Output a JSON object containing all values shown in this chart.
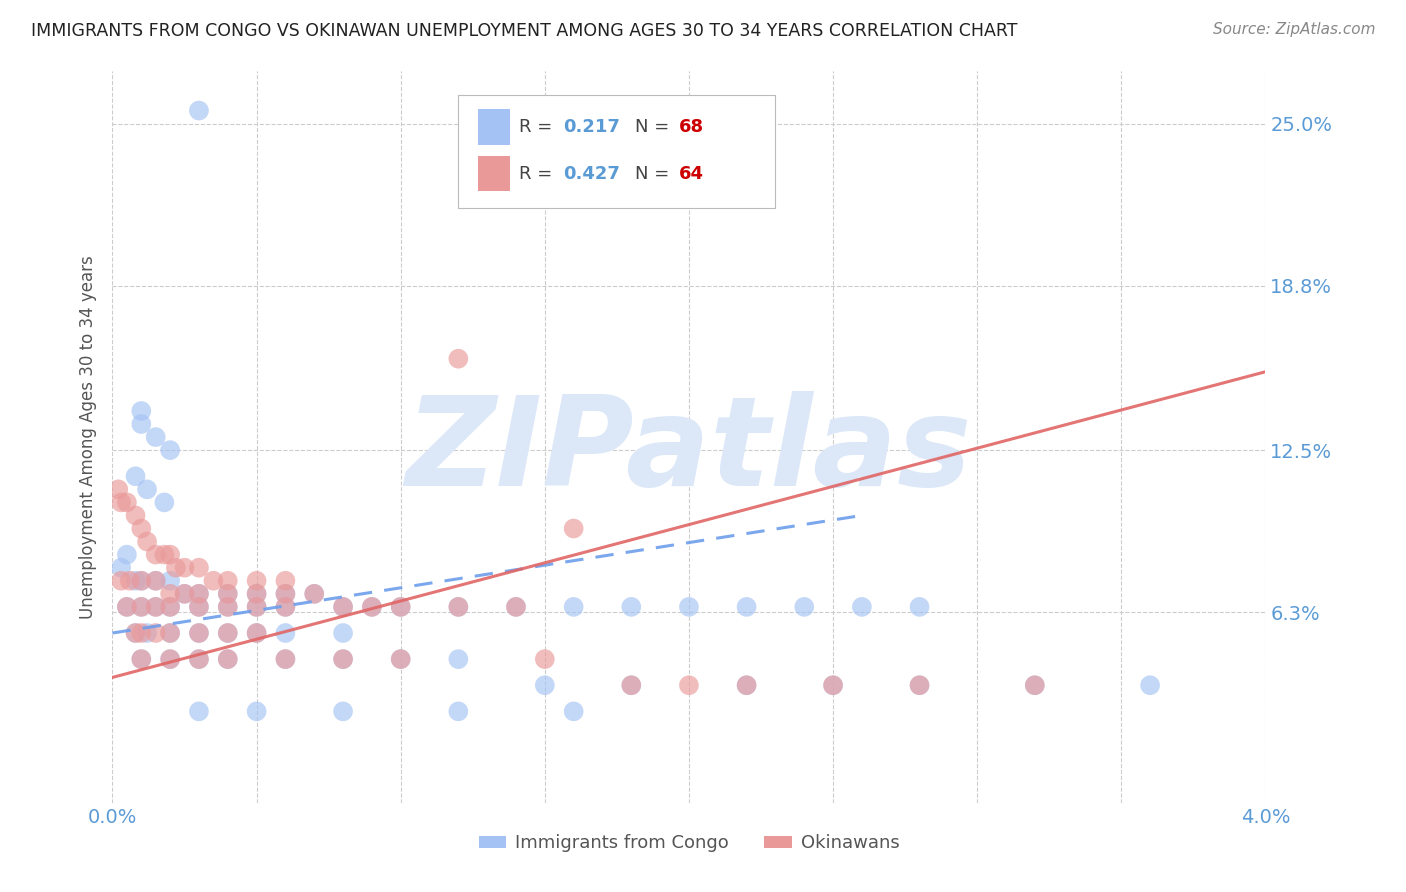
{
  "title": "IMMIGRANTS FROM CONGO VS OKINAWAN UNEMPLOYMENT AMONG AGES 30 TO 34 YEARS CORRELATION CHART",
  "source": "Source: ZipAtlas.com",
  "ylabel": "Unemployment Among Ages 30 to 34 years",
  "ytick_labels": [
    "25.0%",
    "18.8%",
    "12.5%",
    "6.3%"
  ],
  "ytick_values": [
    0.25,
    0.188,
    0.125,
    0.063
  ],
  "xlim": [
    0.0,
    0.04
  ],
  "ylim": [
    -0.01,
    0.27
  ],
  "color_blue": "#a4c2f4",
  "color_pink": "#ea9999",
  "color_blue_line": "#6d9eeb",
  "color_pink_line": "#e06666",
  "watermark_color": "#dce8f8",
  "blue_scatter_x": [
    0.003,
    0.001,
    0.001,
    0.0015,
    0.002,
    0.0008,
    0.0012,
    0.0018,
    0.0005,
    0.0003,
    0.0008,
    0.001,
    0.0015,
    0.002,
    0.0025,
    0.003,
    0.004,
    0.005,
    0.006,
    0.007,
    0.008,
    0.009,
    0.01,
    0.012,
    0.014,
    0.016,
    0.018,
    0.02,
    0.022,
    0.024,
    0.026,
    0.028,
    0.0005,
    0.001,
    0.0015,
    0.002,
    0.003,
    0.004,
    0.005,
    0.006,
    0.0008,
    0.0012,
    0.002,
    0.003,
    0.004,
    0.005,
    0.006,
    0.008,
    0.001,
    0.002,
    0.003,
    0.004,
    0.006,
    0.008,
    0.01,
    0.012,
    0.015,
    0.018,
    0.022,
    0.025,
    0.028,
    0.032,
    0.036,
    0.003,
    0.005,
    0.008,
    0.012,
    0.016
  ],
  "blue_scatter_y": [
    0.255,
    0.14,
    0.135,
    0.13,
    0.125,
    0.115,
    0.11,
    0.105,
    0.085,
    0.08,
    0.075,
    0.075,
    0.075,
    0.075,
    0.07,
    0.07,
    0.07,
    0.07,
    0.07,
    0.07,
    0.065,
    0.065,
    0.065,
    0.065,
    0.065,
    0.065,
    0.065,
    0.065,
    0.065,
    0.065,
    0.065,
    0.065,
    0.065,
    0.065,
    0.065,
    0.065,
    0.065,
    0.065,
    0.065,
    0.065,
    0.055,
    0.055,
    0.055,
    0.055,
    0.055,
    0.055,
    0.055,
    0.055,
    0.045,
    0.045,
    0.045,
    0.045,
    0.045,
    0.045,
    0.045,
    0.045,
    0.035,
    0.035,
    0.035,
    0.035,
    0.035,
    0.035,
    0.035,
    0.025,
    0.025,
    0.025,
    0.025,
    0.025
  ],
  "pink_scatter_x": [
    0.0002,
    0.0003,
    0.0005,
    0.0008,
    0.001,
    0.0012,
    0.0015,
    0.0018,
    0.002,
    0.0022,
    0.0025,
    0.003,
    0.0035,
    0.004,
    0.005,
    0.006,
    0.0003,
    0.0006,
    0.001,
    0.0015,
    0.002,
    0.0025,
    0.003,
    0.004,
    0.005,
    0.006,
    0.007,
    0.008,
    0.009,
    0.01,
    0.012,
    0.014,
    0.0005,
    0.001,
    0.0015,
    0.002,
    0.003,
    0.004,
    0.005,
    0.006,
    0.0008,
    0.001,
    0.0015,
    0.002,
    0.003,
    0.004,
    0.005,
    0.001,
    0.002,
    0.003,
    0.004,
    0.006,
    0.008,
    0.01,
    0.012,
    0.015,
    0.018,
    0.022,
    0.025,
    0.028,
    0.032,
    0.016,
    0.02
  ],
  "pink_scatter_y": [
    0.11,
    0.105,
    0.105,
    0.1,
    0.095,
    0.09,
    0.085,
    0.085,
    0.085,
    0.08,
    0.08,
    0.08,
    0.075,
    0.075,
    0.075,
    0.075,
    0.075,
    0.075,
    0.075,
    0.075,
    0.07,
    0.07,
    0.07,
    0.07,
    0.07,
    0.07,
    0.07,
    0.065,
    0.065,
    0.065,
    0.065,
    0.065,
    0.065,
    0.065,
    0.065,
    0.065,
    0.065,
    0.065,
    0.065,
    0.065,
    0.055,
    0.055,
    0.055,
    0.055,
    0.055,
    0.055,
    0.055,
    0.045,
    0.045,
    0.045,
    0.045,
    0.045,
    0.045,
    0.045,
    0.16,
    0.045,
    0.035,
    0.035,
    0.035,
    0.035,
    0.035,
    0.095,
    0.035
  ]
}
